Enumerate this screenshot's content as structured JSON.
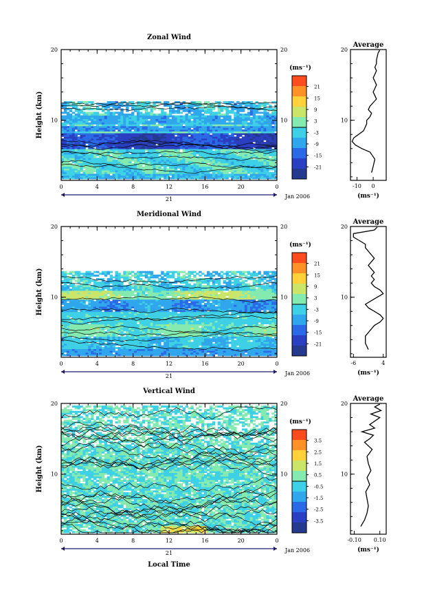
{
  "figure": {
    "date_label": "Jan 2006",
    "day_label": "21",
    "xlabel": "Local Time"
  },
  "chart_data": [
    {
      "type": "heatmap",
      "title": "Zonal Wind",
      "ylabel": "Height (km)",
      "xlabel": "",
      "x_ticks": [
        "0",
        "4",
        "8",
        "12",
        "16",
        "20",
        "0"
      ],
      "xlim": [
        0,
        24
      ],
      "y_ticks": [
        "20",
        "10"
      ],
      "ylim": [
        1.5,
        20
      ],
      "data_top_km": 12.5,
      "colorbar": {
        "unit": "(ms⁻¹)",
        "ticks": [
          "21",
          "15",
          "9",
          "3",
          "-3",
          "-9",
          "-15",
          "-21"
        ],
        "range": [
          -24,
          24
        ]
      },
      "average": {
        "title": "Average",
        "xlabel": "(ms⁻¹)",
        "x_ticks": [
          "-10",
          "0"
        ],
        "xlim": [
          -14,
          8
        ],
        "y_ticks": [
          "20",
          "10"
        ],
        "profile": [
          [
            2.6,
            -1
          ],
          [
            3.5,
            0
          ],
          [
            4.5,
            1
          ],
          [
            5.5,
            -2
          ],
          [
            6,
            -7
          ],
          [
            6.5,
            -11
          ],
          [
            7,
            -13
          ],
          [
            7.5,
            -12
          ],
          [
            8,
            -9
          ],
          [
            8.5,
            -6
          ],
          [
            9,
            -5
          ],
          [
            9.5,
            -4
          ],
          [
            10,
            -4
          ],
          [
            10.5,
            -2
          ],
          [
            11,
            -1
          ],
          [
            11.5,
            -3
          ],
          [
            12,
            -2
          ],
          [
            12.5,
            0
          ],
          [
            13,
            2
          ],
          [
            13.5,
            1
          ],
          [
            14,
            0
          ],
          [
            14.5,
            1
          ],
          [
            15,
            2
          ],
          [
            15.5,
            1
          ],
          [
            16,
            0
          ],
          [
            16.5,
            1
          ],
          [
            17,
            2
          ],
          [
            17.5,
            1
          ],
          [
            18,
            2
          ],
          [
            18.5,
            2
          ],
          [
            19.5,
            3
          ],
          [
            19.9,
            4
          ]
        ]
      }
    },
    {
      "type": "heatmap",
      "title": "Meridional Wind",
      "ylabel": "Height (km)",
      "xlabel": "",
      "x_ticks": [
        "0",
        "4",
        "8",
        "12",
        "16",
        "20",
        "0"
      ],
      "xlim": [
        0,
        24
      ],
      "y_ticks": [
        "20",
        "10"
      ],
      "ylim": [
        1.5,
        20
      ],
      "data_top_km": 13.5,
      "colorbar": {
        "unit": "(ms⁻¹)",
        "ticks": [
          "21",
          "15",
          "9",
          "3",
          "-3",
          "-9",
          "-15",
          "-21"
        ],
        "range": [
          -24,
          24
        ]
      },
      "average": {
        "title": "Average",
        "xlabel": "(ms⁻¹)",
        "x_ticks": [
          "-6",
          "4"
        ],
        "xlim": [
          -7,
          5
        ],
        "y_ticks": [
          "20",
          "10"
        ],
        "profile": [
          [
            2.6,
            -1
          ],
          [
            3.5,
            -2
          ],
          [
            4.5,
            -2
          ],
          [
            5.5,
            0
          ],
          [
            6,
            1
          ],
          [
            6.5,
            3
          ],
          [
            7,
            4
          ],
          [
            7.5,
            3
          ],
          [
            8,
            1
          ],
          [
            8.5,
            -1
          ],
          [
            9,
            -2
          ],
          [
            9.5,
            0
          ],
          [
            10,
            2
          ],
          [
            10.5,
            4
          ],
          [
            11,
            3
          ],
          [
            11.5,
            1
          ],
          [
            12,
            0
          ],
          [
            12.5,
            1
          ],
          [
            13,
            0
          ],
          [
            13.5,
            1
          ],
          [
            14,
            0
          ],
          [
            14.5,
            -1
          ],
          [
            15,
            0
          ],
          [
            15.5,
            1
          ],
          [
            16,
            0
          ],
          [
            16.5,
            -1
          ],
          [
            17,
            -2
          ],
          [
            17.5,
            -2
          ],
          [
            18,
            -4
          ],
          [
            18.5,
            -6
          ],
          [
            19,
            -6
          ],
          [
            19.5,
            1
          ],
          [
            19.9,
            2
          ]
        ]
      }
    },
    {
      "type": "heatmap",
      "title": "Vertical Wind",
      "ylabel": "Height (km)",
      "xlabel": "Local Time",
      "x_ticks": [
        "0",
        "4",
        "8",
        "12",
        "16",
        "20",
        "0"
      ],
      "xlim": [
        0,
        24
      ],
      "y_ticks": [
        "20",
        "10"
      ],
      "ylim": [
        1.5,
        20
      ],
      "data_top_km": 19.5,
      "colorbar": {
        "unit": "(ms⁻¹)",
        "ticks": [
          "3.5",
          "2.5",
          "1.5",
          "0.5",
          "-0.5",
          "-1.5",
          "-2.5",
          "-3.5"
        ],
        "range": [
          -4,
          4
        ]
      },
      "average": {
        "title": "Average",
        "xlabel": "(ms⁻¹)",
        "x_ticks": [
          "-0.10",
          "0.10"
        ],
        "xlim": [
          -0.13,
          0.15
        ],
        "y_ticks": [
          "20",
          "10"
        ],
        "profile": [
          [
            2.6,
            -0.05
          ],
          [
            3.5,
            -0.02
          ],
          [
            4.5,
            0.0
          ],
          [
            5.5,
            0.01
          ],
          [
            6.5,
            0.0
          ],
          [
            7.5,
            -0.01
          ],
          [
            8.5,
            0.02
          ],
          [
            9.5,
            0.0
          ],
          [
            10.5,
            0.03
          ],
          [
            11.5,
            0.01
          ],
          [
            12.5,
            0.0
          ],
          [
            13.5,
            0.04
          ],
          [
            14.5,
            -0.02
          ],
          [
            15,
            0.02
          ],
          [
            15.5,
            0.05
          ],
          [
            16,
            -0.04
          ],
          [
            16.5,
            0.06
          ],
          [
            17,
            0.02
          ],
          [
            17.5,
            0.06
          ],
          [
            18,
            0.1
          ],
          [
            18.5,
            0.03
          ],
          [
            19,
            0.11
          ],
          [
            19.5,
            0.06
          ],
          [
            19.9,
            0.1
          ]
        ]
      }
    }
  ]
}
